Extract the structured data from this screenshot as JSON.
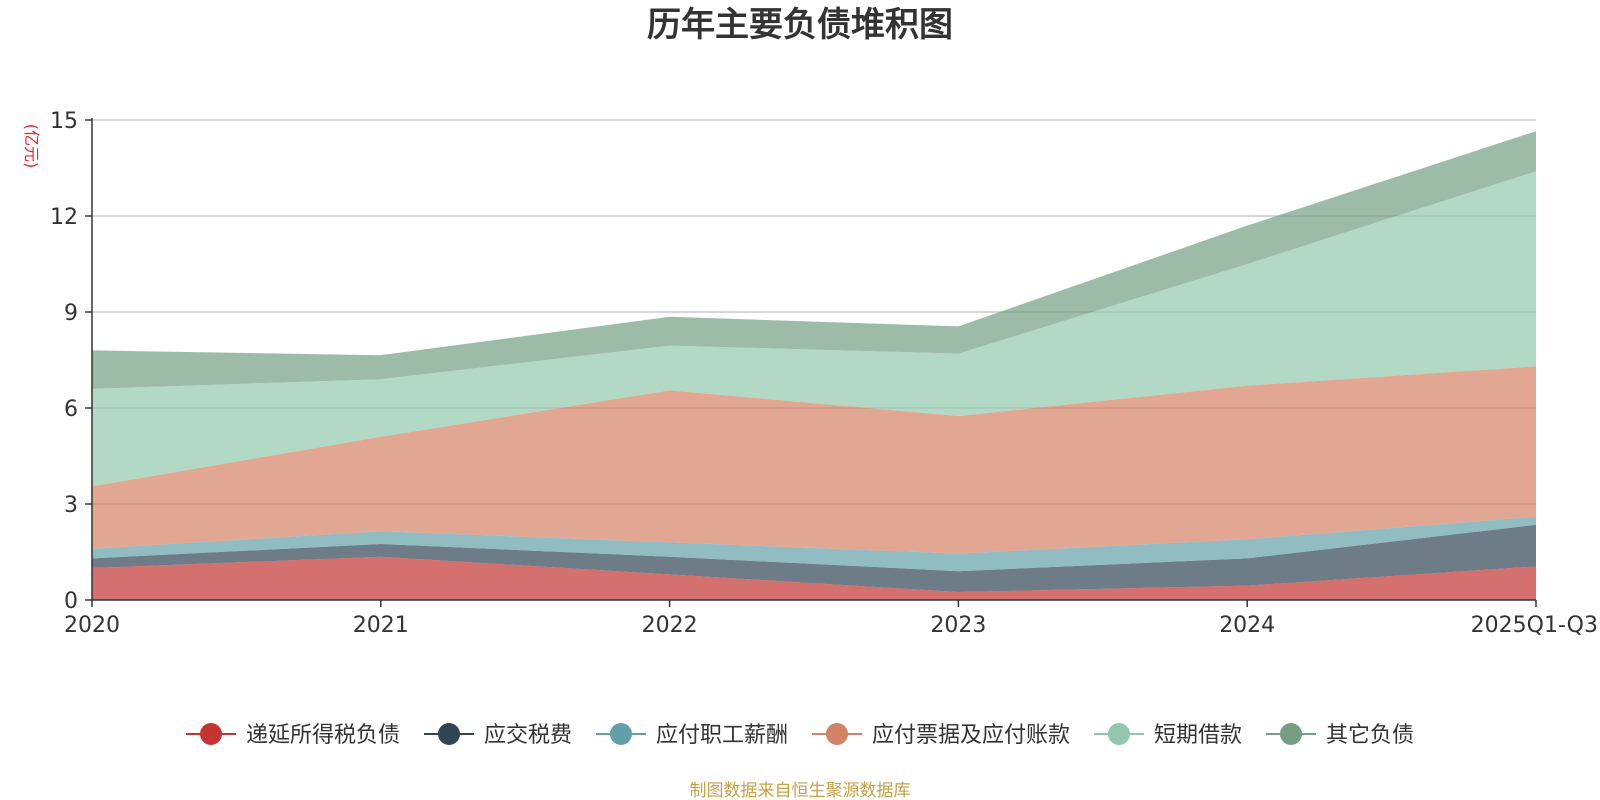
{
  "chart_data": {
    "type": "area",
    "stacked": true,
    "title": "历年主要负债堆积图",
    "unit_label": "(亿元)",
    "categories": [
      "2020",
      "2021",
      "2022",
      "2023",
      "2024",
      "2025Q1-Q3"
    ],
    "ylim": [
      0,
      15
    ],
    "yticks": [
      0,
      3,
      6,
      9,
      12,
      15
    ],
    "grid": true,
    "legend_position": "bottom",
    "series": [
      {
        "name": "递延所得税负债",
        "color": "#c23531",
        "values": [
          1.0,
          1.35,
          0.8,
          0.25,
          0.45,
          1.05
        ]
      },
      {
        "name": "应交税费",
        "color": "#2f4554",
        "values": [
          0.3,
          0.4,
          0.55,
          0.65,
          0.85,
          1.3
        ]
      },
      {
        "name": "应付职工薪酬",
        "color": "#61a0a8",
        "values": [
          0.3,
          0.4,
          0.45,
          0.55,
          0.6,
          0.25
        ]
      },
      {
        "name": "应付票据及应付账款",
        "color": "#d48265",
        "values": [
          1.95,
          2.95,
          4.75,
          4.3,
          4.8,
          4.7
        ]
      },
      {
        "name": "短期借款",
        "color": "#91c7ae",
        "values": [
          3.05,
          1.8,
          1.4,
          1.95,
          3.8,
          6.1
        ]
      },
      {
        "name": "其它负债",
        "color": "#749f83",
        "values": [
          1.2,
          0.75,
          0.9,
          0.85,
          1.2,
          1.25
        ]
      }
    ],
    "source": "制图数据来自恒生聚源数据库"
  }
}
